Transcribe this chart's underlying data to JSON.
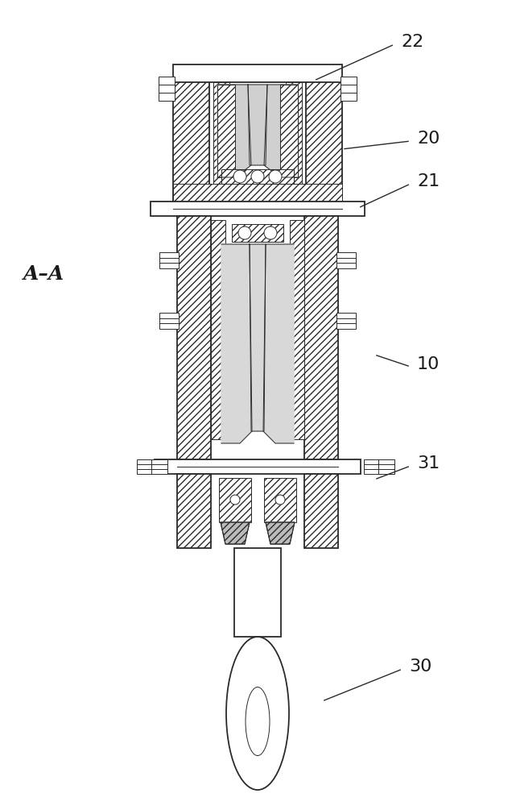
{
  "bg_color": "#ffffff",
  "line_color": "#2a2a2a",
  "lw_main": 1.3,
  "lw_thin": 0.7,
  "lw_med": 1.0,
  "section_label": "A–A",
  "label_color": "#1a1a1a",
  "label_fontsize": 16,
  "section_fontsize": 18
}
